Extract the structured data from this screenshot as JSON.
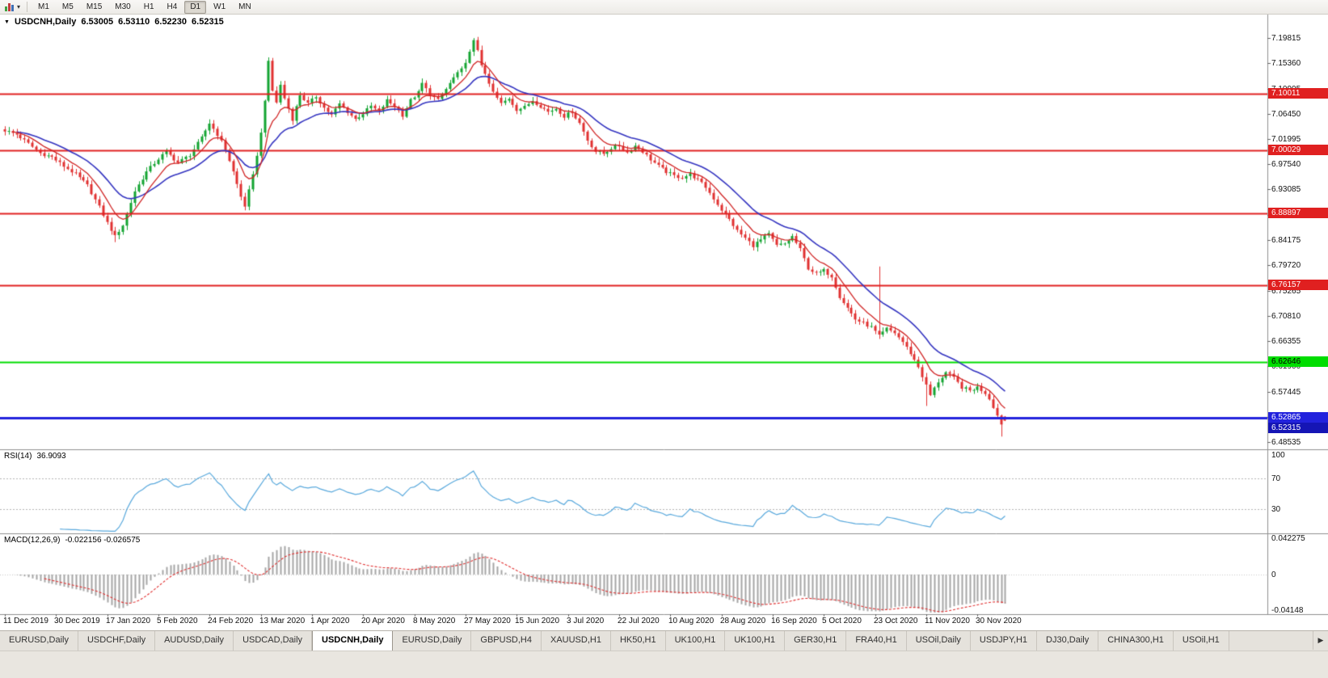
{
  "toolbar": {
    "dropdown_caret": "▾",
    "timeframes": [
      "M1",
      "M5",
      "M15",
      "M30",
      "H1",
      "H4",
      "D1",
      "W1",
      "MN"
    ],
    "active_timeframe": "D1"
  },
  "chart_header": {
    "collapse_icon": "▼",
    "symbol": "USDCNH,Daily",
    "open": "6.53005",
    "high": "6.53110",
    "low": "6.52230",
    "close": "6.52315"
  },
  "tabbar": {
    "tabs": [
      "EURUSD,Daily",
      "USDCHF,Daily",
      "AUDUSD,Daily",
      "USDCAD,Daily",
      "USDCNH,Daily",
      "EURUSD,Daily",
      "GBPUSD,H4",
      "XAUUSD,H1",
      "HK50,H1",
      "UK100,H1",
      "UK100,H1",
      "GER30,H1",
      "FRA40,H1",
      "USOil,Daily",
      "USDJPY,H1",
      "DJ30,Daily",
      "CHINA300,H1",
      "USOil,H1"
    ],
    "active_index": 4,
    "scroll_right": "▶"
  },
  "chart_data": {
    "type": "candlestick",
    "symbol": "USDCNH",
    "timeframe": "Daily",
    "title": "USDCNH,Daily 6.53005 6.53110 6.52230 6.52315",
    "grid": false,
    "bars_total": 255,
    "price_axis_range": [
      6.48535,
      7.19815
    ],
    "price_axis_ticks": [
      "7.19815",
      "7.15360",
      "7.10905",
      "7.06450",
      "7.01995",
      "6.97540",
      "6.93085",
      "6.88630",
      "6.84175",
      "6.79720",
      "6.75265",
      "6.70810",
      "6.66355",
      "6.61900",
      "6.57445",
      "6.52990",
      "6.48535"
    ],
    "dates": [
      "11 Dec 2019",
      "30 Dec 2019",
      "17 Jan 2020",
      "5 Feb 2020",
      "24 Feb 2020",
      "13 Mar 2020",
      "1 Apr 2020",
      "20 Apr 2020",
      "8 May 2020",
      "27 May 2020",
      "15 Jun 2020",
      "3 Jul 2020",
      "22 Jul 2020",
      "10 Aug 2020",
      "28 Aug 2020",
      "16 Sep 2020",
      "5 Oct 2020",
      "23 Oct 2020",
      "11 Nov 2020",
      "30 Nov 2020"
    ],
    "date_tick_interval_bars": 13,
    "up_color": "#14a432",
    "down_color": "#e03030",
    "ma_fast": {
      "period": 8,
      "color": "#d02424"
    },
    "ma_slow": {
      "period": 20,
      "color": "#3434c0"
    },
    "levels": [
      {
        "label": "7.10011",
        "value": 7.10011,
        "color": "#e02020",
        "text_color": "#ffffff",
        "width": 2
      },
      {
        "label": "7.00029",
        "value": 7.00029,
        "color": "#e02020",
        "text_color": "#ffffff",
        "width": 2
      },
      {
        "label": "6.88897",
        "value": 6.88897,
        "color": "#e02020",
        "text_color": "#ffffff",
        "width": 2
      },
      {
        "label": "6.76157",
        "value": 6.76157,
        "color": "#e02020",
        "text_color": "#ffffff",
        "width": 2
      },
      {
        "label": "6.62646",
        "value": 6.62646,
        "color": "#00dd00",
        "text_color": "#000000",
        "width": 2
      },
      {
        "label": "6.52865",
        "value": 6.52865,
        "color": "#2222dd",
        "text_color": "#ffffff",
        "width": 3
      }
    ],
    "current_price": {
      "label": "6.52315",
      "value": 6.52315,
      "badge_color": "#1515b5",
      "text_color": "#ffffff"
    },
    "last_bar": {
      "o": 6.53005,
      "h": 6.5311,
      "l": 6.5223,
      "c": 6.52315
    },
    "anchors": [
      [
        0,
        7.035
      ],
      [
        3,
        7.028
      ],
      [
        6,
        7.012
      ],
      [
        9,
        6.995
      ],
      [
        12,
        6.988
      ],
      [
        15,
        6.972
      ],
      [
        18,
        6.958
      ],
      [
        21,
        6.938
      ],
      [
        24,
        6.9
      ],
      [
        26,
        6.872
      ],
      [
        28,
        6.848
      ],
      [
        30,
        6.868
      ],
      [
        33,
        6.928
      ],
      [
        36,
        6.962
      ],
      [
        39,
        6.985
      ],
      [
        41,
        6.998
      ],
      [
        44,
        6.978
      ],
      [
        47,
        6.992
      ],
      [
        50,
        7.022
      ],
      [
        52,
        7.048
      ],
      [
        54,
        7.028
      ],
      [
        56,
        7.002
      ],
      [
        58,
        6.962
      ],
      [
        60,
        6.918
      ],
      [
        61,
        6.902
      ],
      [
        63,
        6.955
      ],
      [
        65,
        7.03
      ],
      [
        66,
        7.09
      ],
      [
        67,
        7.155
      ],
      [
        68,
        7.105
      ],
      [
        69,
        7.085
      ],
      [
        70,
        7.115
      ],
      [
        71,
        7.092
      ],
      [
        73,
        7.055
      ],
      [
        75,
        7.098
      ],
      [
        77,
        7.082
      ],
      [
        79,
        7.095
      ],
      [
        81,
        7.075
      ],
      [
        83,
        7.062
      ],
      [
        85,
        7.082
      ],
      [
        87,
        7.068
      ],
      [
        89,
        7.055
      ],
      [
        91,
        7.065
      ],
      [
        93,
        7.078
      ],
      [
        95,
        7.068
      ],
      [
        97,
        7.088
      ],
      [
        99,
        7.078
      ],
      [
        101,
        7.062
      ],
      [
        103,
        7.088
      ],
      [
        105,
        7.102
      ],
      [
        106,
        7.118
      ],
      [
        108,
        7.098
      ],
      [
        110,
        7.088
      ],
      [
        112,
        7.108
      ],
      [
        114,
        7.128
      ],
      [
        116,
        7.142
      ],
      [
        118,
        7.172
      ],
      [
        119,
        7.192
      ],
      [
        120,
        7.178
      ],
      [
        121,
        7.152
      ],
      [
        122,
        7.132
      ],
      [
        124,
        7.102
      ],
      [
        126,
        7.082
      ],
      [
        128,
        7.092
      ],
      [
        130,
        7.072
      ],
      [
        132,
        7.076
      ],
      [
        134,
        7.088
      ],
      [
        136,
        7.078
      ],
      [
        138,
        7.068
      ],
      [
        140,
        7.074
      ],
      [
        142,
        7.06
      ],
      [
        144,
        7.068
      ],
      [
        146,
        7.048
      ],
      [
        148,
        7.018
      ],
      [
        150,
        6.998
      ],
      [
        152,
        6.994
      ],
      [
        154,
        7.004
      ],
      [
        156,
        7.008
      ],
      [
        158,
        6.996
      ],
      [
        160,
        7.008
      ],
      [
        162,
        6.998
      ],
      [
        164,
        6.984
      ],
      [
        166,
        6.972
      ],
      [
        168,
        6.962
      ],
      [
        170,
        6.955
      ],
      [
        172,
        6.952
      ],
      [
        174,
        6.958
      ],
      [
        176,
        6.948
      ],
      [
        178,
        6.935
      ],
      [
        180,
        6.915
      ],
      [
        182,
        6.895
      ],
      [
        184,
        6.878
      ],
      [
        186,
        6.858
      ],
      [
        188,
        6.845
      ],
      [
        190,
        6.832
      ],
      [
        192,
        6.842
      ],
      [
        194,
        6.852
      ],
      [
        196,
        6.832
      ],
      [
        198,
        6.835
      ],
      [
        200,
        6.848
      ],
      [
        202,
        6.825
      ],
      [
        204,
        6.792
      ],
      [
        206,
        6.782
      ],
      [
        208,
        6.788
      ],
      [
        210,
        6.778
      ],
      [
        212,
        6.742
      ],
      [
        214,
        6.722
      ],
      [
        216,
        6.702
      ],
      [
        218,
        6.695
      ],
      [
        220,
        6.688
      ],
      [
        222,
        6.672
      ],
      [
        224,
        6.685
      ],
      [
        226,
        6.678
      ],
      [
        228,
        6.662
      ],
      [
        230,
        6.642
      ],
      [
        232,
        6.618
      ],
      [
        234,
        6.585
      ],
      [
        235,
        6.568
      ],
      [
        237,
        6.592
      ],
      [
        239,
        6.608
      ],
      [
        241,
        6.598
      ],
      [
        243,
        6.582
      ],
      [
        245,
        6.576
      ],
      [
        247,
        6.582
      ],
      [
        249,
        6.572
      ],
      [
        250,
        6.562
      ],
      [
        251,
        6.548
      ],
      [
        252,
        6.532
      ],
      [
        253,
        6.518
      ],
      [
        254,
        6.52315
      ]
    ],
    "wick_overrides": {
      "28": {
        "low": 6.838
      },
      "67": {
        "high": 7.164
      },
      "119": {
        "high": 7.198
      },
      "222": {
        "high": 6.795
      },
      "234": {
        "low": 6.549
      },
      "253": {
        "low": 6.495
      }
    },
    "indicators": {
      "rsi": {
        "label": "RSI(14)",
        "value": "36.9093",
        "period": 14,
        "scale": [
          "100",
          "70",
          "30"
        ],
        "level_lines": [
          70,
          30
        ],
        "line_color": "#58a8dc"
      },
      "macd": {
        "label": "MACD(12,26,9)",
        "values": "-0.022156 -0.026575",
        "params": [
          12,
          26,
          9
        ],
        "scale_top": "0.042275",
        "scale_mid": "0",
        "scale_bottom": "-0.04148",
        "histogram_color": "#a6a6a6",
        "signal_color": "#e03030"
      }
    }
  }
}
